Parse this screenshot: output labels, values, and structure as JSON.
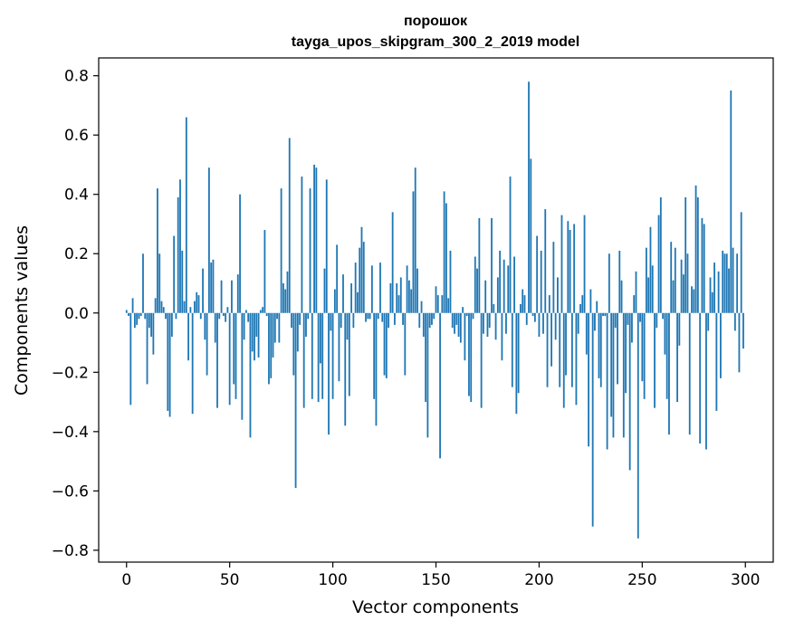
{
  "chart_data": {
    "type": "bar",
    "title": "порошок",
    "subtitle": "tayga_upos_skipgram_300_2_2019 model",
    "xlabel": "Vector components",
    "ylabel": "Components values",
    "xlim": [
      -13.5,
      313.5
    ],
    "ylim": [
      -0.84,
      0.86
    ],
    "xticks": [
      0,
      50,
      100,
      150,
      200,
      250,
      300
    ],
    "yticks": [
      -0.8,
      -0.6,
      -0.4,
      -0.2,
      0.0,
      0.2,
      0.4,
      0.6,
      0.8
    ],
    "ytick_labels": [
      "−0.8",
      "−0.6",
      "−0.4",
      "−0.2",
      "0.0",
      "0.2",
      "0.4",
      "0.6",
      "0.8"
    ],
    "bar_color": "#1f77b4",
    "values": [
      0.01,
      -0.01,
      -0.31,
      0.05,
      -0.05,
      -0.04,
      -0.02,
      -0.01,
      0.2,
      -0.02,
      -0.24,
      -0.05,
      -0.08,
      -0.14,
      0.05,
      0.42,
      0.2,
      0.04,
      0.02,
      -0.02,
      -0.33,
      -0.35,
      -0.08,
      0.26,
      -0.02,
      0.39,
      0.45,
      0.21,
      0.04,
      0.66,
      -0.16,
      0.02,
      -0.34,
      0.04,
      0.07,
      0.06,
      -0.02,
      0.15,
      -0.09,
      -0.21,
      0.49,
      0.17,
      0.18,
      -0.1,
      -0.32,
      -0.02,
      0.11,
      -0.01,
      -0.03,
      0.02,
      -0.31,
      0.11,
      -0.24,
      -0.29,
      0.13,
      0.4,
      -0.36,
      -0.09,
      0.01,
      -0.03,
      -0.42,
      -0.13,
      -0.16,
      -0.08,
      -0.15,
      0.01,
      0.02,
      0.28,
      -0.01,
      -0.24,
      -0.22,
      -0.15,
      -0.1,
      -0.02,
      -0.1,
      0.42,
      0.1,
      0.08,
      0.14,
      0.59,
      -0.05,
      -0.21,
      -0.59,
      -0.13,
      -0.04,
      0.46,
      -0.32,
      -0.08,
      -0.02,
      0.42,
      -0.29,
      0.5,
      0.49,
      -0.3,
      -0.17,
      -0.29,
      0.15,
      0.45,
      -0.41,
      -0.06,
      -0.29,
      0.08,
      0.23,
      -0.23,
      -0.05,
      0.13,
      -0.38,
      -0.09,
      -0.28,
      0.1,
      -0.05,
      0.17,
      0.07,
      0.22,
      0.29,
      0.24,
      -0.03,
      -0.02,
      -0.02,
      0.16,
      -0.29,
      -0.38,
      -0.02,
      0.17,
      -0.03,
      -0.21,
      -0.22,
      -0.05,
      0.1,
      0.34,
      -0.04,
      0.1,
      0.06,
      0.12,
      -0.04,
      -0.21,
      0.16,
      0.11,
      0.08,
      0.41,
      0.49,
      0.15,
      -0.05,
      0.04,
      -0.08,
      -0.3,
      -0.42,
      -0.05,
      -0.04,
      -0.02,
      0.09,
      0.06,
      -0.49,
      0.06,
      0.41,
      0.37,
      0.05,
      0.21,
      -0.05,
      -0.07,
      -0.04,
      -0.08,
      -0.1,
      0.02,
      -0.16,
      -0.01,
      -0.28,
      -0.3,
      -0.02,
      0.19,
      0.15,
      0.32,
      -0.32,
      -0.07,
      0.11,
      -0.08,
      -0.05,
      0.32,
      0.03,
      -0.09,
      0.12,
      0.21,
      -0.16,
      0.18,
      -0.07,
      0.16,
      0.46,
      -0.25,
      0.19,
      -0.34,
      -0.27,
      0.03,
      0.08,
      0.06,
      -0.04,
      0.78,
      0.52,
      -0.01,
      -0.03,
      0.26,
      -0.08,
      0.21,
      -0.07,
      0.35,
      -0.25,
      0.06,
      -0.18,
      0.24,
      -0.09,
      0.12,
      -0.25,
      0.33,
      -0.32,
      -0.21,
      0.31,
      0.28,
      -0.25,
      0.3,
      -0.31,
      -0.07,
      0.03,
      0.06,
      0.33,
      -0.14,
      -0.45,
      0.08,
      -0.72,
      -0.06,
      0.04,
      -0.22,
      -0.25,
      -0.01,
      -0.01,
      -0.46,
      0.2,
      -0.35,
      -0.42,
      -0.05,
      -0.24,
      0.21,
      0.11,
      -0.42,
      -0.27,
      -0.04,
      -0.53,
      -0.1,
      0.06,
      0.14,
      -0.76,
      -0.03,
      -0.23,
      -0.29,
      0.22,
      0.12,
      0.29,
      0.16,
      -0.32,
      -0.05,
      0.33,
      0.39,
      -0.02,
      -0.14,
      -0.29,
      -0.41,
      0.24,
      0.11,
      0.22,
      -0.3,
      -0.11,
      0.18,
      0.13,
      0.39,
      0.2,
      -0.41,
      0.09,
      0.08,
      0.43,
      0.39,
      -0.44,
      0.32,
      0.3,
      -0.46,
      -0.06,
      0.12,
      0.07,
      0.17,
      -0.33,
      0.14,
      -0.22,
      0.21,
      0.2,
      0.2,
      0.15,
      0.75,
      0.22,
      -0.06,
      0.2,
      -0.2,
      0.34,
      -0.12
    ]
  }
}
